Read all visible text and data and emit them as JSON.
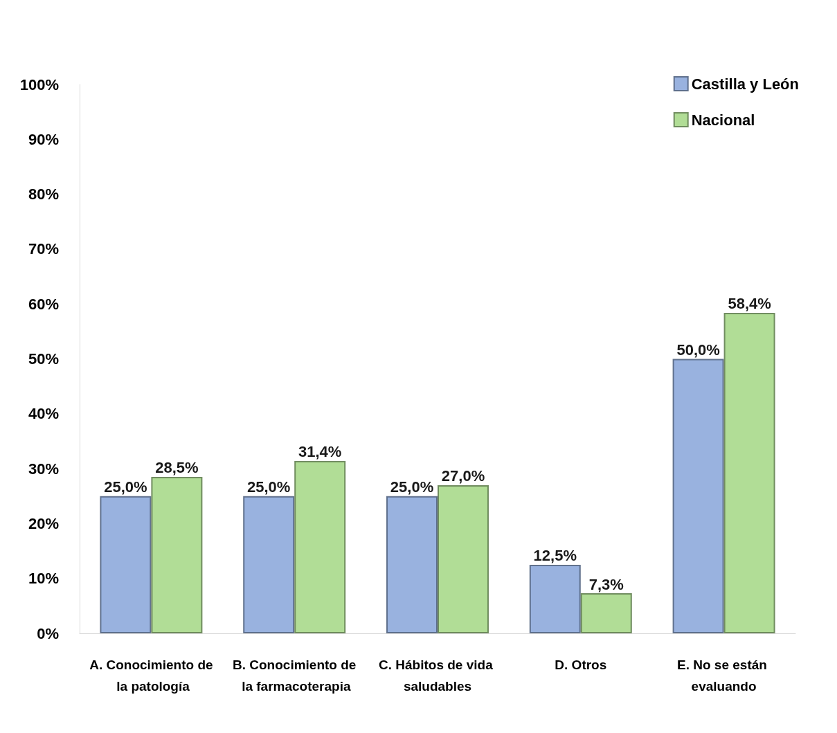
{
  "chart_data": {
    "type": "bar",
    "categories": [
      "A. Conocimiento de la patología",
      "B. Conocimiento de la farmacoterapia",
      "C. Hábitos de vida saludables",
      "D. Otros",
      "E. No se están evaluando"
    ],
    "series": [
      {
        "name": "Castilla y León",
        "color": "#8eaadb",
        "values": [
          25.0,
          25.0,
          25.0,
          12.5,
          50.0
        ],
        "value_labels": [
          "25,0%",
          "25,0%",
          "25,0%",
          "12,5%",
          "50,0%"
        ]
      },
      {
        "name": "Nacional",
        "color": "#a9d98b",
        "values": [
          28.5,
          31.4,
          27.0,
          7.3,
          58.4
        ],
        "value_labels": [
          "28,5%",
          "31,4%",
          "27,0%",
          "7,3%",
          "58,4%"
        ]
      }
    ],
    "ylim": [
      0,
      100
    ],
    "yticks": [
      {
        "value": 0,
        "label": "0%"
      },
      {
        "value": 10,
        "label": "10%"
      },
      {
        "value": 20,
        "label": "20%"
      },
      {
        "value": 30,
        "label": "30%"
      },
      {
        "value": 40,
        "label": "40%"
      },
      {
        "value": 50,
        "label": "50%"
      },
      {
        "value": 60,
        "label": "60%"
      },
      {
        "value": 70,
        "label": "70%"
      },
      {
        "value": 80,
        "label": "80%"
      },
      {
        "value": 90,
        "label": "90%"
      },
      {
        "value": 100,
        "label": "100%"
      }
    ],
    "grid": false,
    "legend": "top right"
  }
}
